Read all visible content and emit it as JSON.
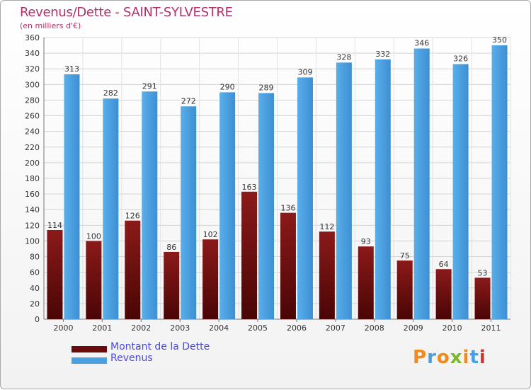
{
  "title": "Revenus/Dette - SAINT-SYLVESTRE",
  "subtitle": "(en milliers d'€)",
  "colors": {
    "dette": "#6b0a0a",
    "revenus": "#4a9fe0",
    "title": "#b0306a",
    "legend_text": "#4a4ae0"
  },
  "legend": {
    "dette_label": "Montant de la Dette",
    "revenus_label": "Revenus"
  },
  "logo": {
    "text": "Proxiti"
  },
  "chart_data": {
    "type": "bar",
    "title": "Revenus/Dette - SAINT-SYLVESTRE",
    "subtitle": "(en milliers d'€)",
    "categories": [
      "2000",
      "2001",
      "2002",
      "2003",
      "2004",
      "2005",
      "2006",
      "2007",
      "2008",
      "2009",
      "2010",
      "2011"
    ],
    "series": [
      {
        "name": "Montant de la Dette",
        "values": [
          114,
          100,
          126,
          86,
          102,
          163,
          136,
          112,
          93,
          75,
          64,
          53
        ]
      },
      {
        "name": "Revenus",
        "values": [
          313,
          282,
          291,
          272,
          290,
          289,
          309,
          328,
          332,
          346,
          326,
          350
        ]
      }
    ],
    "ylim": [
      0,
      360
    ],
    "yticks": [
      0,
      20,
      40,
      60,
      80,
      100,
      120,
      140,
      160,
      180,
      200,
      220,
      240,
      260,
      280,
      300,
      320,
      340,
      360
    ],
    "grid": true,
    "legend_position": "bottom-left"
  }
}
